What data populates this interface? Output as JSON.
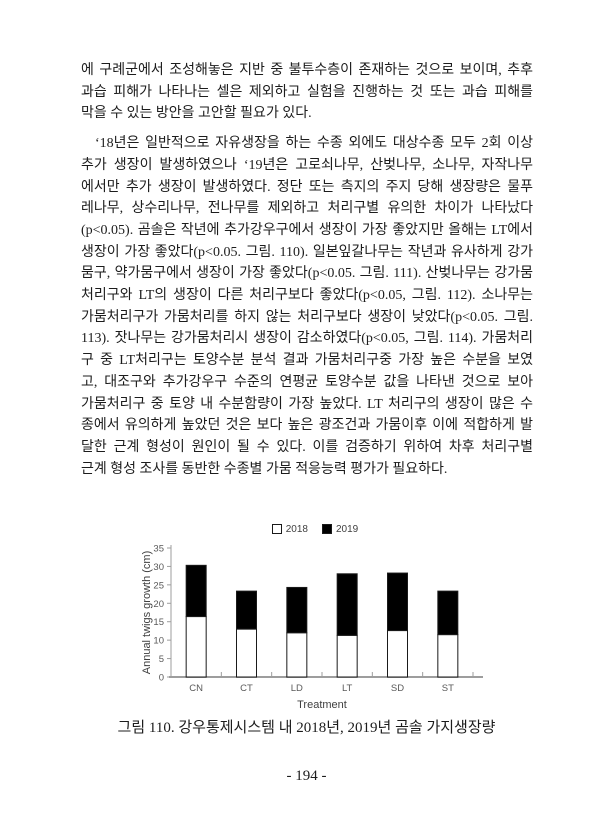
{
  "page": {
    "number_label": "- 194 -"
  },
  "body": {
    "paragraphs": [
      {
        "indent": false,
        "lines": [
          "에 구례군에서 조성해놓은 지반 중 불투수층이 존재하는 것으로 보이며, 추후",
          "과습 피해가 나타나는 셀은 제외하고 실험을 진행하는 것 또는 과습 피해를",
          "막을 수 있는 방안을 고안할 필요가 있다."
        ]
      },
      {
        "indent": true,
        "lines": [
          "‘18년은 일반적으로 자유생장을 하는 수종 외에도 대상수종 모두 2회 이상",
          "추가 생장이 발생하였으나 ‘19년은 고로쇠나무, 산벚나무, 소나무, 자작나무",
          "에서만 추가 생장이 발생하였다. 정단 또는 측지의 주지 당해 생장량은 물푸",
          "레나무, 상수리나무, 전나무를 제외하고 처리구별 유의한 차이가 나타났다",
          "(p<0.05). 곰솔은 작년에 추가강우구에서 생장이 가장 좋았지만 올해는 LT에서",
          "생장이 가장 좋았다(p<0.05. 그림. 110). 일본잎갈나무는 작년과 유사하게 강가",
          "뭄구, 약가뭄구에서 생장이 가장 좋았다(p<0.05. 그림. 111). 산벚나무는 강가뭄",
          "처리구와 LT의 생장이 다른 처리구보다 좋았다(p<0.05, 그림. 112). 소나무는",
          "가뭄처리구가 가뭄처리를 하지 않는 처리구보다 생장이 낮았다(p<0.05. 그림.",
          "113). 잣나무는 강가뭄처리시 생장이 감소하였다(p<0.05, 그림. 114). 가뭄처리",
          "구 중 LT처리구는 토양수분 분석 결과 가뭄처리구중 가장 높은 수분을 보였",
          "고, 대조구와 추가강우구 수준의 연평균 토양수분 값을 나타낸 것으로 보아",
          "가뭄처리구 중 토양 내 수분함량이 가장 높았다. LT 처리구의 생장이 많은 수",
          "종에서 유의하게 높았던 것은 보다 높은 광조건과 가뭄이후 이에 적합하게 발",
          "달한 근계 형성이 원인이 될 수 있다. 이를 검증하기 위하여 차후 처리구별",
          "근계 형성 조사를 동반한 수종별 가뭄 적응능력 평가가 필요하다."
        ]
      }
    ]
  },
  "figure": {
    "caption": "그림 110. 강우통제시스템 내 2018년, 2019년 곰솔 가지생장량"
  },
  "chart_data": {
    "type": "bar",
    "stacked": true,
    "categories": [
      "CN",
      "CT",
      "LD",
      "LT",
      "SD",
      "ST"
    ],
    "series": [
      {
        "name": "2018",
        "color": "#ffffff",
        "values": [
          16.4,
          13.0,
          12.0,
          11.3,
          12.6,
          11.5
        ]
      },
      {
        "name": "2019",
        "color": "#000000",
        "values": [
          13.9,
          10.3,
          12.3,
          16.7,
          15.6,
          11.8
        ]
      }
    ],
    "totals": [
      30.3,
      23.3,
      24.3,
      28.0,
      28.2,
      23.3
    ],
    "title": "",
    "xlabel": "Treatment",
    "ylabel": "Annual twigs growth (cm)",
    "ylim": [
      0,
      35
    ],
    "ytick_step": 5,
    "legend_position": "top",
    "grid": false,
    "colors": {
      "axis": "#9d9d9d",
      "tick_label": "#595959",
      "bar_outline": "#1a1a1a"
    }
  }
}
